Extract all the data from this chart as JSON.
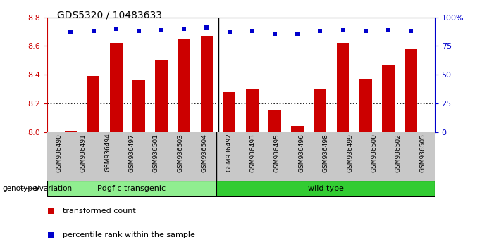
{
  "title": "GDS5320 / 10483633",
  "samples": [
    "GSM936490",
    "GSM936491",
    "GSM936494",
    "GSM936497",
    "GSM936501",
    "GSM936503",
    "GSM936504",
    "GSM936492",
    "GSM936493",
    "GSM936495",
    "GSM936496",
    "GSM936498",
    "GSM936499",
    "GSM936500",
    "GSM936502",
    "GSM936505"
  ],
  "bar_values": [
    8.01,
    8.39,
    8.62,
    8.36,
    8.5,
    8.65,
    8.67,
    8.28,
    8.3,
    8.15,
    8.04,
    8.3,
    8.62,
    8.37,
    8.47,
    8.58
  ],
  "percentile_values": [
    87,
    88,
    90,
    88,
    89,
    90,
    91,
    87,
    88,
    86,
    86,
    88,
    89,
    88,
    89,
    88
  ],
  "groups": [
    {
      "label": "Pdgf-c transgenic",
      "count": 7,
      "color": "#90EE90"
    },
    {
      "label": "wild type",
      "count": 9,
      "color": "#33CC33"
    }
  ],
  "bar_color": "#CC0000",
  "dot_color": "#0000CC",
  "ylim_left": [
    8.0,
    8.8
  ],
  "ylim_right": [
    0,
    100
  ],
  "yticks_left": [
    8.0,
    8.2,
    8.4,
    8.6,
    8.8
  ],
  "yticks_right": [
    0,
    25,
    50,
    75,
    100
  ],
  "grid_values": [
    8.2,
    8.4,
    8.6
  ],
  "bar_width": 0.55,
  "bg_color": "#FFFFFF",
  "tick_color_left": "#CC0000",
  "tick_color_right": "#0000CC",
  "xlabel_group": "genotype/variation",
  "legend_items": [
    {
      "label": "transformed count",
      "color": "#CC0000"
    },
    {
      "label": "percentile rank within the sample",
      "color": "#0000CC"
    }
  ],
  "n_group1": 7,
  "n_group2": 9
}
